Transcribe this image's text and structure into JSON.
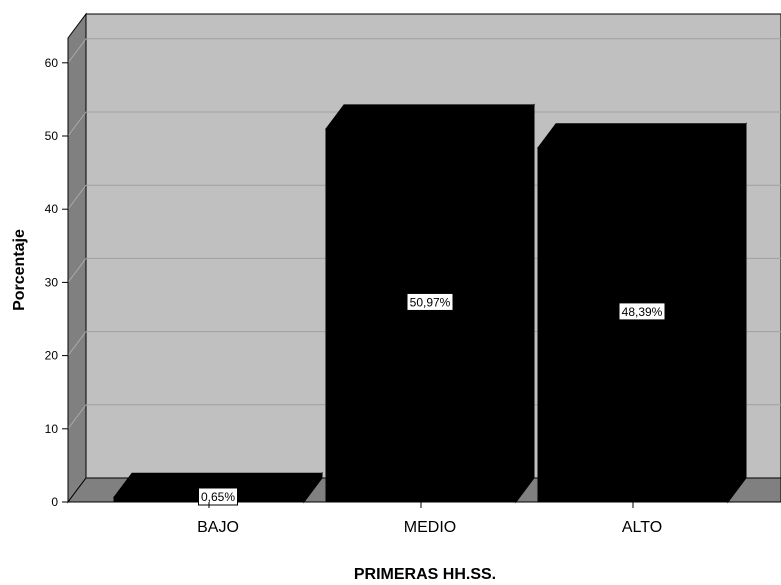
{
  "chart_data": {
    "type": "bar",
    "categories": [
      "BAJO",
      "MEDIO",
      "ALTO"
    ],
    "values": [
      0.65,
      50.97,
      48.39
    ],
    "data_labels": [
      "0,65%",
      "50,97%",
      "48,39%"
    ],
    "title": "",
    "xlabel": "PRIMERAS HH.SS.",
    "ylabel": "Porcentaje",
    "ylim": [
      0,
      60
    ],
    "yticks": [
      0,
      10,
      20,
      30,
      40,
      50,
      60
    ],
    "grid": true,
    "style": "3d",
    "colors": {
      "bar": "#000000",
      "wall": "#c0c0c0",
      "side_wall": "#808080",
      "grid": "#a0a0a0"
    }
  }
}
